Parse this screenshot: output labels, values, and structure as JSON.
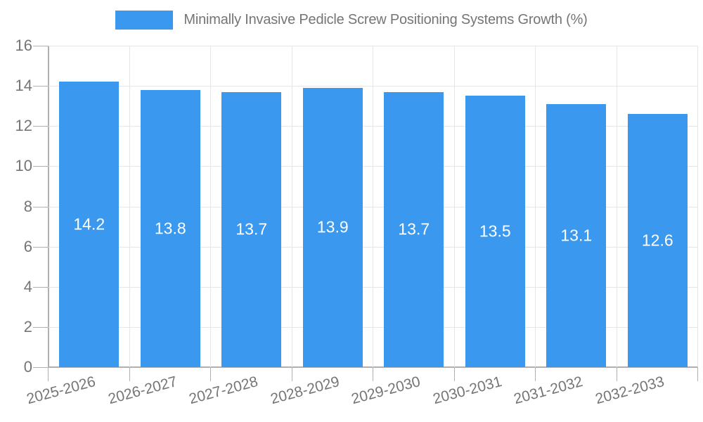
{
  "chart_data": {
    "type": "bar",
    "title": "Minimally Invasive Pedicle Screw Positioning Systems Growth (%)",
    "categories": [
      "2025-2026",
      "2026-2027",
      "2027-2028",
      "2028-2029",
      "2029-2030",
      "2030-2031",
      "2031-2032",
      "2032-2033"
    ],
    "values": [
      14.2,
      13.8,
      13.7,
      13.9,
      13.7,
      13.5,
      13.1,
      12.6
    ],
    "value_labels": [
      "14.2",
      "13.8",
      "13.7",
      "13.9",
      "13.7",
      "13.5",
      "13.1",
      "12.6"
    ],
    "xlabel": "",
    "ylabel": "",
    "ylim": [
      0,
      16
    ],
    "ytick_step": 2,
    "ytick_labels": [
      "0",
      "2",
      "4",
      "6",
      "8",
      "10",
      "12",
      "14",
      "16"
    ],
    "grid": true,
    "legend_position": "top",
    "legend_entries": [
      "Minimally Invasive Pedicle Screw Positioning Systems Growth (%)"
    ],
    "colors": {
      "bar": "#3A99EF",
      "bar_value_text": "#ffffff",
      "axis": "#b0b0b0",
      "grid": "#e6e6e6",
      "text": "#757575"
    }
  }
}
